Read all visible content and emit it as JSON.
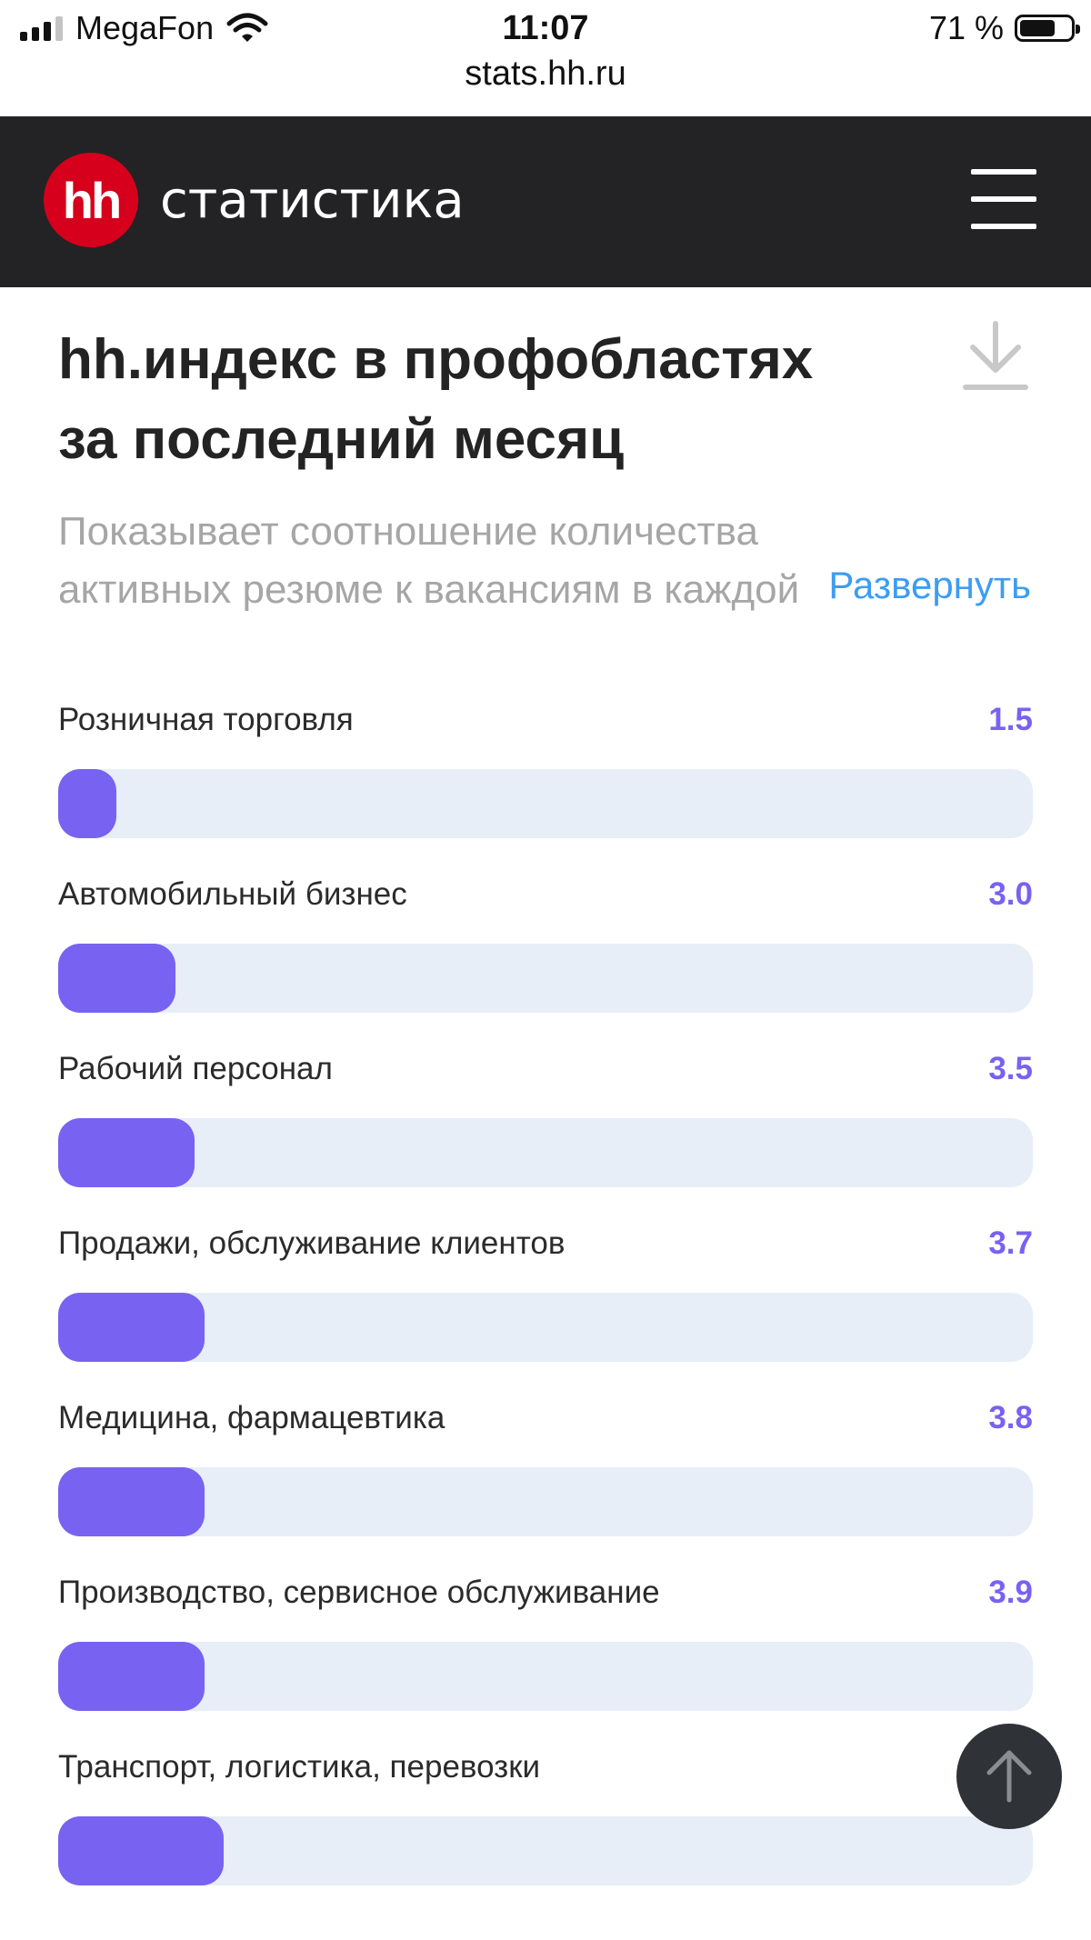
{
  "status_bar": {
    "carrier": "MegaFon",
    "time": "11:07",
    "battery_percent": "71 %",
    "battery_level": 0.71,
    "url": "stats.hh.ru"
  },
  "header": {
    "logo_mark": "hh",
    "logo_text": "статистика",
    "logo_color": "#d6001c",
    "background": "#232325",
    "menu_icon": "hamburger-menu-icon"
  },
  "main": {
    "title": "hh.индекс в профобластях за последний месяц",
    "download_icon": "download-icon",
    "description": "Показывает соотношение количества активных резюме к вакансиям в каждой",
    "expand_label": "Развернуть",
    "accent_color": "#7862f1",
    "items": [
      {
        "label": "Розничная торговля",
        "value": "1.5"
      },
      {
        "label": "Автомобильный бизнес",
        "value": "3.0"
      },
      {
        "label": "Рабочий персонал",
        "value": "3.5"
      },
      {
        "label": "Продажи, обслуживание клиентов",
        "value": "3.7"
      },
      {
        "label": "Медицина, фармацевтика",
        "value": "3.8"
      },
      {
        "label": "Производство, сервисное обслуживание",
        "value": "3.9"
      },
      {
        "label": "Транспорт, логистика, перевозки",
        "value": ""
      }
    ],
    "bar_fill_fractions": [
      0.06,
      0.12,
      0.14,
      0.15,
      0.15,
      0.15,
      0.17
    ]
  },
  "scroll_top_icon": "arrow-up-icon"
}
